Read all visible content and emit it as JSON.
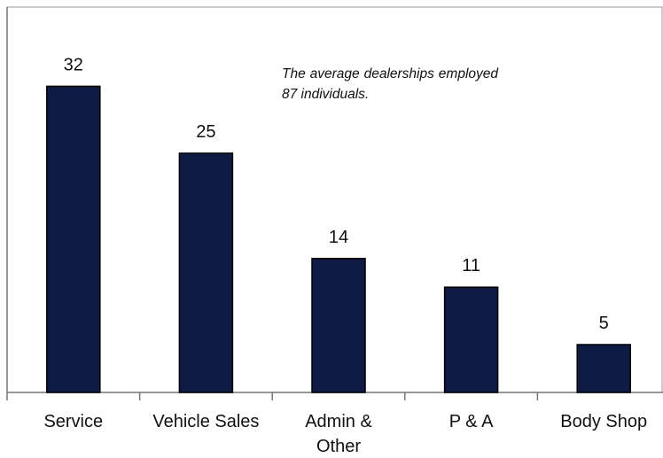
{
  "chart_data": {
    "type": "bar",
    "annotation": "The average dealerships employed 87 individuals.",
    "categories": [
      "Service",
      "Vehicle Sales",
      "Admin &\nOther",
      "P & A",
      "Body Shop"
    ],
    "values": [
      32,
      25,
      14,
      11,
      5
    ],
    "color": "#0f1a45"
  }
}
